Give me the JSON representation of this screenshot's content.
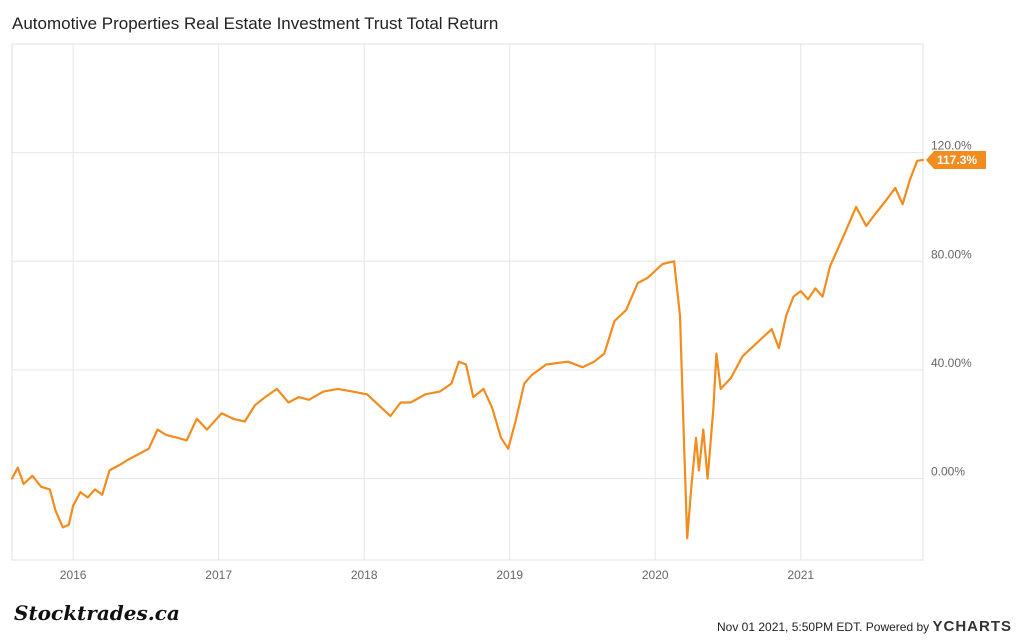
{
  "title": "Automotive Properties Real Estate Investment Trust Total Return",
  "brand": "Stocktrades.ca",
  "footer": {
    "timestamp": "Nov 01 2021, 5:50PM EDT.",
    "powered_by": "Powered by",
    "provider": "YCHARTS"
  },
  "colors": {
    "line": "#f28c1e",
    "grid": "#e6e6e6",
    "axis_text": "#666666"
  },
  "chart_data": {
    "type": "line",
    "title": "Automotive Properties Real Estate Investment Trust Total Return",
    "xlabel": "",
    "ylabel": "",
    "x_ticks": [
      "2016",
      "2017",
      "2018",
      "2019",
      "2020",
      "2021"
    ],
    "y_ticks": [
      {
        "value": 0,
        "label": "0.00%"
      },
      {
        "value": 40,
        "label": "40.00%"
      },
      {
        "value": 80,
        "label": "80.00%"
      },
      {
        "value": 120,
        "label": "120.0%"
      }
    ],
    "ylim": [
      -30,
      160
    ],
    "xlim": [
      2015.58,
      2021.84
    ],
    "grid": true,
    "last_value_label": "117.3%",
    "series": [
      {
        "values": [
          [
            2015.58,
            0
          ],
          [
            2015.62,
            4
          ],
          [
            2015.66,
            -2
          ],
          [
            2015.72,
            1
          ],
          [
            2015.78,
            -3
          ],
          [
            2015.84,
            -4
          ],
          [
            2015.88,
            -12
          ],
          [
            2015.93,
            -18
          ],
          [
            2015.97,
            -17
          ],
          [
            2016.0,
            -10
          ],
          [
            2016.05,
            -5
          ],
          [
            2016.1,
            -7
          ],
          [
            2016.15,
            -4
          ],
          [
            2016.2,
            -6
          ],
          [
            2016.25,
            3
          ],
          [
            2016.32,
            5
          ],
          [
            2016.38,
            7
          ],
          [
            2016.45,
            9
          ],
          [
            2016.52,
            11
          ],
          [
            2016.58,
            18
          ],
          [
            2016.64,
            16
          ],
          [
            2016.72,
            15
          ],
          [
            2016.78,
            14
          ],
          [
            2016.85,
            22
          ],
          [
            2016.92,
            18
          ],
          [
            2017.02,
            24
          ],
          [
            2017.1,
            22
          ],
          [
            2017.18,
            21
          ],
          [
            2017.25,
            27
          ],
          [
            2017.32,
            30
          ],
          [
            2017.4,
            33
          ],
          [
            2017.48,
            28
          ],
          [
            2017.55,
            30
          ],
          [
            2017.62,
            29
          ],
          [
            2017.72,
            32
          ],
          [
            2017.82,
            33
          ],
          [
            2017.92,
            32
          ],
          [
            2018.02,
            31
          ],
          [
            2018.1,
            27
          ],
          [
            2018.18,
            23
          ],
          [
            2018.25,
            28
          ],
          [
            2018.32,
            28
          ],
          [
            2018.42,
            31
          ],
          [
            2018.52,
            32
          ],
          [
            2018.6,
            35
          ],
          [
            2018.65,
            43
          ],
          [
            2018.7,
            42
          ],
          [
            2018.75,
            30
          ],
          [
            2018.82,
            33
          ],
          [
            2018.88,
            26
          ],
          [
            2018.94,
            15
          ],
          [
            2018.99,
            11
          ],
          [
            2019.04,
            21
          ],
          [
            2019.1,
            35
          ],
          [
            2019.15,
            38
          ],
          [
            2019.25,
            42
          ],
          [
            2019.4,
            43
          ],
          [
            2019.5,
            41
          ],
          [
            2019.58,
            43
          ],
          [
            2019.65,
            46
          ],
          [
            2019.72,
            58
          ],
          [
            2019.8,
            62
          ],
          [
            2019.88,
            72
          ],
          [
            2019.95,
            74
          ],
          [
            2020.05,
            79
          ],
          [
            2020.13,
            80
          ],
          [
            2020.17,
            60
          ],
          [
            2020.2,
            10
          ],
          [
            2020.22,
            -22
          ],
          [
            2020.25,
            -2
          ],
          [
            2020.28,
            15
          ],
          [
            2020.3,
            3
          ],
          [
            2020.33,
            18
          ],
          [
            2020.36,
            0
          ],
          [
            2020.4,
            26
          ],
          [
            2020.42,
            46
          ],
          [
            2020.45,
            33
          ],
          [
            2020.52,
            37
          ],
          [
            2020.6,
            45
          ],
          [
            2020.7,
            50
          ],
          [
            2020.8,
            55
          ],
          [
            2020.85,
            48
          ],
          [
            2020.9,
            60
          ],
          [
            2020.95,
            67
          ],
          [
            2021.0,
            69
          ],
          [
            2021.05,
            66
          ],
          [
            2021.1,
            70
          ],
          [
            2021.15,
            67
          ],
          [
            2021.2,
            78
          ],
          [
            2021.3,
            90
          ],
          [
            2021.38,
            100
          ],
          [
            2021.45,
            93
          ],
          [
            2021.52,
            98
          ],
          [
            2021.58,
            102
          ],
          [
            2021.65,
            107
          ],
          [
            2021.7,
            101
          ],
          [
            2021.75,
            110
          ],
          [
            2021.8,
            117
          ],
          [
            2021.84,
            117.3
          ]
        ]
      }
    ]
  }
}
